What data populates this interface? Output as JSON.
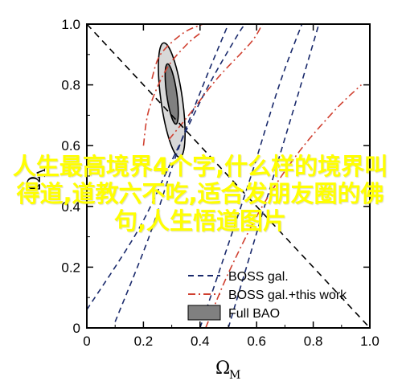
{
  "chart_data": {
    "type": "line",
    "xlabel_main": "Ω",
    "xlabel_sub": "M",
    "ylabel_main": "Ω",
    "ylabel_sub": "Λ",
    "xlim": [
      0,
      1
    ],
    "ylim": [
      0,
      1
    ],
    "xticks": [
      "0",
      "0.2",
      "0.4",
      "0.6",
      "0.8",
      "1.0"
    ],
    "yticks": [
      "0",
      "0.2",
      "0.4",
      "0.6",
      "0.8",
      "1.0"
    ],
    "legend_position": "bottom-right",
    "series": [
      {
        "name": "BOSS gal.",
        "style": "dashed",
        "color": "#1a2a6c",
        "contours": [
          [
            [
              0.0,
              0.06
            ],
            [
              0.18,
              0.32
            ],
            [
              0.3,
              0.55
            ],
            [
              0.42,
              0.78
            ],
            [
              0.53,
              0.96
            ],
            [
              0.56,
              1.0
            ]
          ],
          [
            [
              0.1,
              0.02
            ],
            [
              0.22,
              0.3
            ],
            [
              0.32,
              0.58
            ],
            [
              0.42,
              0.82
            ],
            [
              0.5,
              1.0
            ]
          ],
          [
            [
              0.4,
              0.0
            ],
            [
              0.48,
              0.22
            ],
            [
              0.58,
              0.5
            ],
            [
              0.68,
              0.8
            ],
            [
              0.76,
              1.0
            ]
          ],
          [
            [
              0.5,
              0.0
            ],
            [
              0.58,
              0.25
            ],
            [
              0.66,
              0.5
            ],
            [
              0.75,
              0.78
            ],
            [
              0.82,
              1.0
            ]
          ]
        ]
      },
      {
        "name": "BOSS gal.+this work",
        "style": "dashdot",
        "color": "#d04030",
        "contours": [
          [
            [
              0.2,
              0.6
            ],
            [
              0.22,
              0.72
            ],
            [
              0.28,
              0.85
            ],
            [
              0.35,
              0.93
            ],
            [
              0.4,
              0.97
            ]
          ],
          [
            [
              0.23,
              0.82
            ],
            [
              0.26,
              0.9
            ],
            [
              0.34,
              0.97
            ],
            [
              0.41,
              1.0
            ]
          ],
          [
            [
              0.29,
              0.62
            ],
            [
              0.36,
              0.7
            ],
            [
              0.46,
              0.82
            ],
            [
              0.58,
              0.94
            ],
            [
              0.62,
              1.0
            ]
          ],
          [
            [
              0.42,
              0.0
            ],
            [
              0.5,
              0.18
            ],
            [
              0.62,
              0.4
            ],
            [
              0.75,
              0.58
            ],
            [
              0.88,
              0.72
            ],
            [
              0.97,
              0.8
            ]
          ]
        ]
      },
      {
        "name": "Full BAO",
        "style": "filled",
        "colors": [
          "#d8d8d8",
          "#808080"
        ],
        "ellipses": [
          {
            "level": "outer",
            "cx": 0.3,
            "cy": 0.75,
            "rx": 0.038,
            "ry": 0.19,
            "angle_deg": -8
          },
          {
            "level": "inner",
            "cx": 0.3,
            "cy": 0.77,
            "rx": 0.018,
            "ry": 0.1,
            "angle_deg": -8
          }
        ]
      }
    ],
    "reference_line": {
      "style": "dashed",
      "color": "#000000",
      "points": [
        [
          0.0,
          1.0
        ],
        [
          1.0,
          0.0
        ]
      ]
    }
  },
  "overlay_text": "人生最高境界4个字,什么样的境界叫得道,道教六不吃,适合发朋友圈的佛句,人生悟道图片"
}
